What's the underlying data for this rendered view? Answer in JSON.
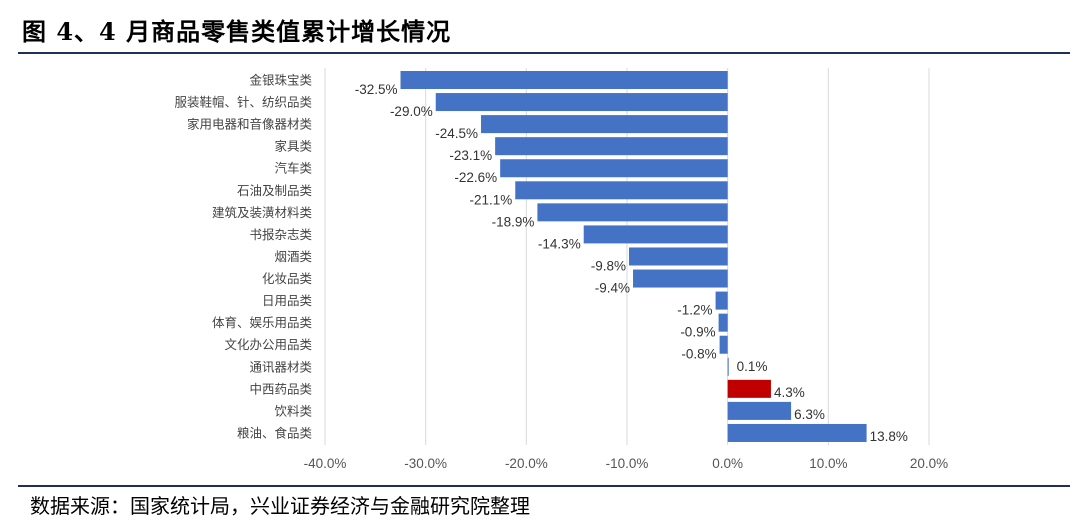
{
  "title": "图 4、4 月商品零售类值累计增长情况",
  "source": "数据来源：国家统计局，兴业证券经济与金融研究院整理",
  "chart_data": {
    "type": "bar",
    "orientation": "horizontal",
    "categories": [
      "金银珠宝类",
      "服装鞋帽、针、纺织品类",
      "家用电器和音像器材类",
      "家具类",
      "汽车类",
      "石油及制品类",
      "建筑及装潢材料类",
      "书报杂志类",
      "烟酒类",
      "化妆品类",
      "日用品类",
      "体育、娱乐用品类",
      "文化办公用品类",
      "通讯器材类",
      "中西药品类",
      "饮料类",
      "粮油、食品类"
    ],
    "values": [
      -32.5,
      -29.0,
      -24.5,
      -23.1,
      -22.6,
      -21.1,
      -18.9,
      -14.3,
      -9.8,
      -9.4,
      -1.2,
      -0.9,
      -0.8,
      0.1,
      4.3,
      6.3,
      13.8
    ],
    "data_labels": [
      "-32.5%",
      "-29.0%",
      "-24.5%",
      "-23.1%",
      "-22.6%",
      "-21.1%",
      "-18.9%",
      "-14.3%",
      "-9.8%",
      "-9.4%",
      "-1.2%",
      "-0.9%",
      "-0.8%",
      "0.1%",
      "4.3%",
      "6.3%",
      "13.8%"
    ],
    "highlight_index": 14,
    "xlim": [
      -40,
      20
    ],
    "xticks": [
      -40,
      -30,
      -20,
      -10,
      0,
      10,
      20
    ],
    "xtick_labels": [
      "-40.0%",
      "-30.0%",
      "-20.0%",
      "-10.0%",
      "0.0%",
      "10.0%",
      "20.0%"
    ],
    "grid": "vertical",
    "colors": {
      "bar": "#4472c4",
      "highlight": "#c00000",
      "grid": "#d9d9d9"
    }
  }
}
